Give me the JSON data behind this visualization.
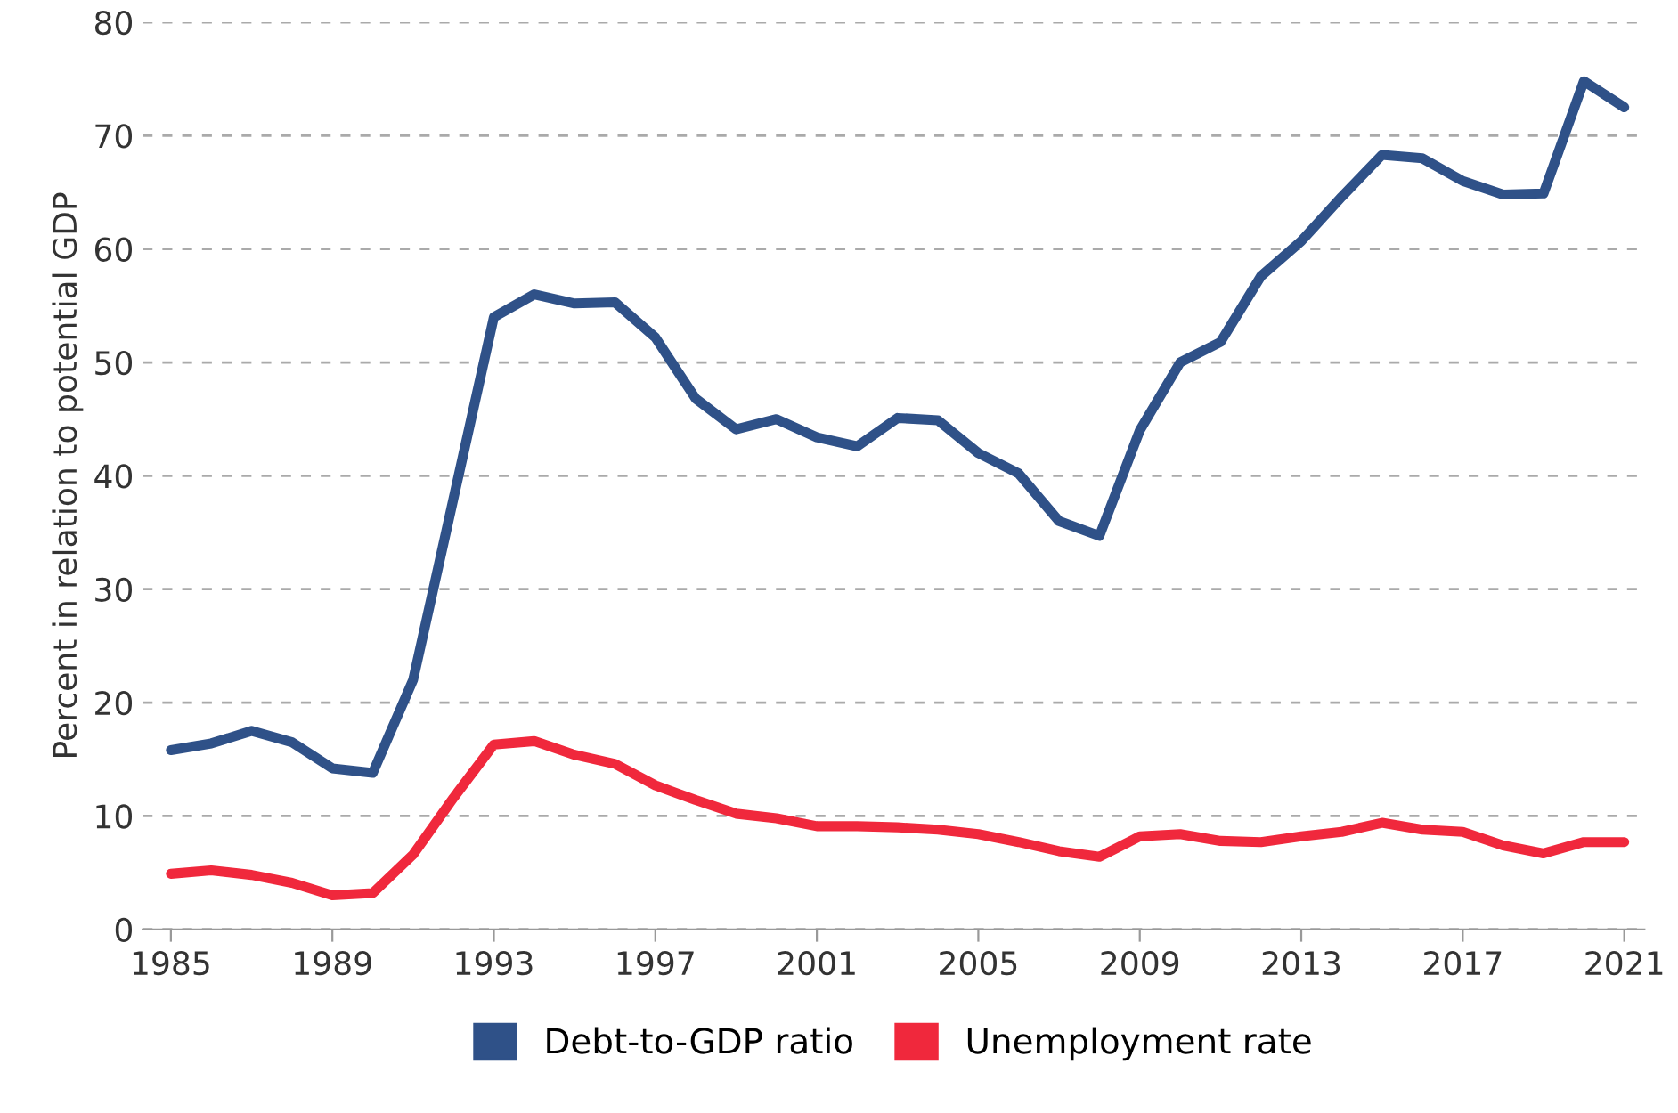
{
  "chart_data": {
    "type": "line",
    "ylabel": "Percent in relation to potential GDP",
    "x": [
      1985,
      1986,
      1987,
      1988,
      1989,
      1990,
      1991,
      1992,
      1993,
      1994,
      1995,
      1996,
      1997,
      1998,
      1999,
      2000,
      2001,
      2002,
      2003,
      2004,
      2005,
      2006,
      2007,
      2008,
      2009,
      2010,
      2011,
      2012,
      2013,
      2014,
      2015,
      2016,
      2017,
      2018,
      2019,
      2020,
      2021
    ],
    "series": [
      {
        "name": "Debt-to-GDP ratio",
        "color": "#2f5188",
        "values": [
          15.8,
          16.4,
          17.5,
          16.5,
          14.2,
          13.8,
          22,
          38,
          54,
          56,
          55.2,
          55.3,
          52.2,
          46.8,
          44.1,
          45,
          43.4,
          42.6,
          45.1,
          44.9,
          42,
          40.2,
          36,
          34.7,
          44,
          50,
          51.8,
          57.6,
          60.7,
          64.6,
          68.3,
          68,
          66,
          64.8,
          64.9,
          74.8,
          72.5
        ]
      },
      {
        "name": "Unemployment rate",
        "color": "#f0283c",
        "values": [
          4.9,
          5.2,
          4.8,
          4.1,
          3.0,
          3.2,
          6.6,
          11.6,
          16.3,
          16.6,
          15.4,
          14.6,
          12.7,
          11.4,
          10.2,
          9.8,
          9.1,
          9.1,
          9.0,
          8.8,
          8.4,
          7.7,
          6.9,
          6.4,
          8.2,
          8.4,
          7.8,
          7.7,
          8.2,
          8.6,
          9.4,
          8.8,
          8.6,
          7.4,
          6.7,
          7.7,
          7.7
        ]
      }
    ],
    "xlim": [
      1984.3,
      2021.5
    ],
    "xticks": [
      1985,
      1989,
      1993,
      1997,
      2001,
      2005,
      2009,
      2013,
      2017,
      2021
    ],
    "ylim": [
      0,
      80
    ],
    "yticks": [
      0,
      10,
      20,
      30,
      40,
      50,
      60,
      70,
      80
    ],
    "grid": "y",
    "legend": "bottom",
    "marker": "none",
    "line_style": "solid"
  }
}
